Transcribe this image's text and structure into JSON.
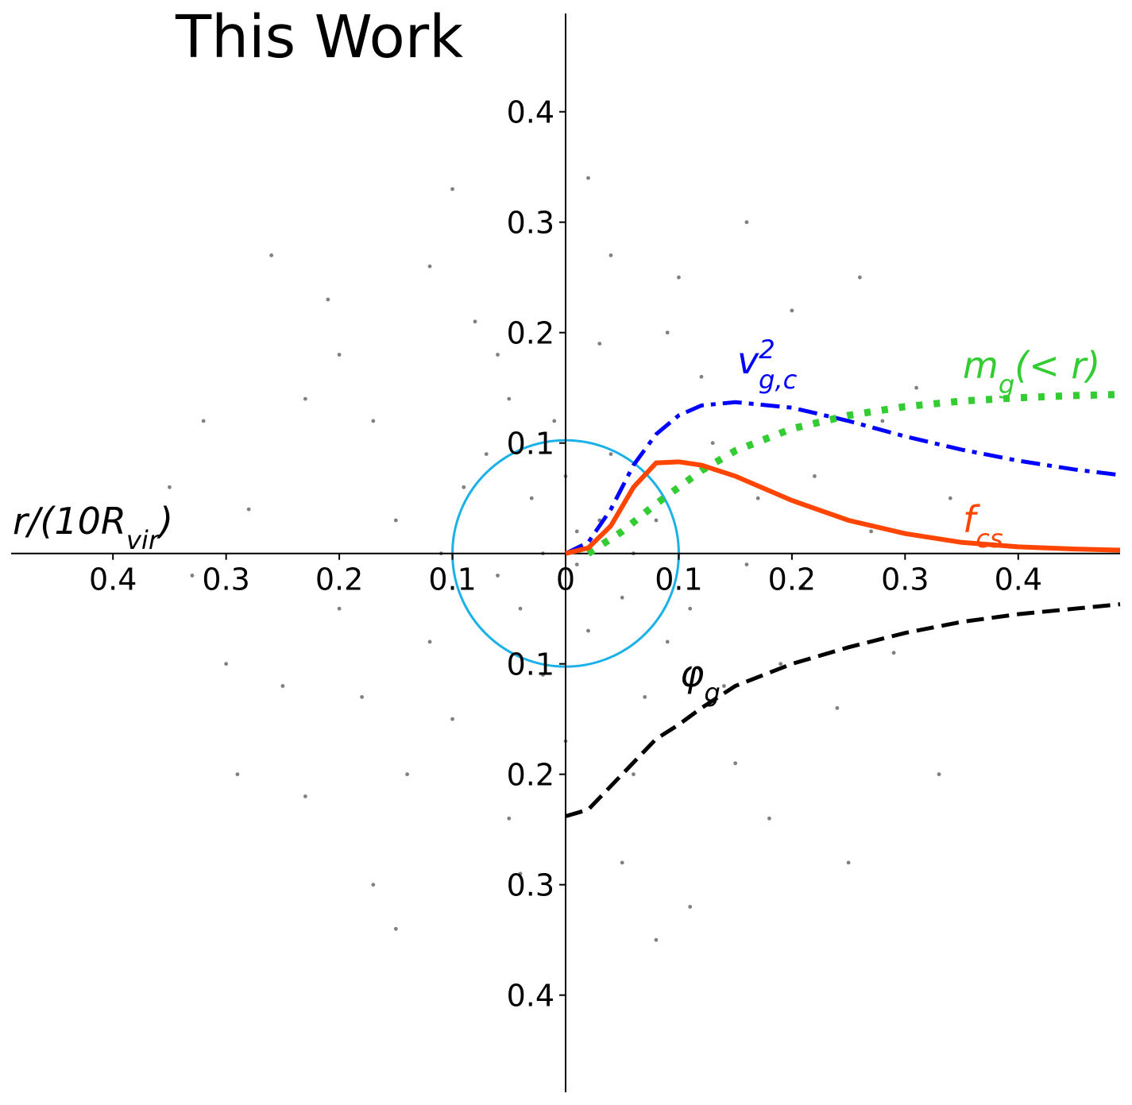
{
  "chart_data": {
    "type": "line",
    "title": "This Work",
    "xlabel": [
      {
        "text": "r/(10R"
      },
      {
        "text": "vir",
        "shift": "sub"
      },
      {
        "text": ")"
      }
    ],
    "xlim": [
      -0.49,
      0.49
    ],
    "ylim": [
      -0.488,
      0.489
    ],
    "xticks": [
      {
        "value": -0.4,
        "label": "0.4"
      },
      {
        "value": -0.3,
        "label": "0.3"
      },
      {
        "value": -0.2,
        "label": "0.2"
      },
      {
        "value": -0.1,
        "label": "0.1"
      },
      0,
      0.1,
      0.2,
      0.3,
      0.4
    ],
    "yticks": [
      {
        "value": -0.4,
        "label": "0.4"
      },
      {
        "value": -0.3,
        "label": "0.3"
      },
      {
        "value": -0.2,
        "label": "0.2"
      },
      {
        "value": -0.1,
        "label": "0.1"
      },
      0.1,
      0.2,
      0.3,
      0.4
    ],
    "circle": {
      "radius": 0.1,
      "color": "#1ab0e8"
    },
    "scatter": {
      "color": "#808080",
      "x": [
        0.01,
        -0.03,
        0.05,
        -0.06,
        0.02,
        0.08,
        -0.09,
        0.04,
        -0.02,
        0.11,
        -0.12,
        0.13,
        -0.05,
        0.07,
        -0.15,
        0.16,
        -0.1,
        0.12,
        -0.17,
        0.03,
        0.19,
        -0.2,
        0.06,
        -0.08,
        0.22,
        -0.23,
        0.15,
        -0.14,
        0.24,
        -0.25,
        0.1,
        -0.12,
        0.27,
        -0.28,
        0.2,
        -0.21,
        0.05,
        -0.04,
        0.29,
        -0.3,
        0.16,
        -0.17,
        0.31,
        -0.32,
        0.02,
        0.08,
        -0.33,
        0.33,
        -0.26,
        0.25,
        0.01,
        -0.02,
        0.03,
        -0.04,
        0.0,
        0.06,
        -0.07,
        0.09,
        -0.01,
        0.14,
        -0.11,
        0.17,
        -0.18,
        0.0,
        0.21,
        -0.06,
        0.09,
        -0.2,
        0.18,
        -0.23,
        0.28,
        -0.35,
        0.34,
        -0.1,
        0.11,
        -0.05,
        0.04,
        -0.29,
        0.26,
        -0.15
      ],
      "y": [
        0.02,
        0.05,
        -0.04,
        -0.02,
        -0.07,
        0.03,
        0.06,
        0.09,
        -0.11,
        -0.05,
        -0.08,
        0.1,
        0.14,
        -0.13,
        0.03,
        -0.01,
        -0.15,
        0.16,
        0.12,
        0.19,
        -0.1,
        -0.05,
        -0.2,
        0.21,
        0.07,
        0.14,
        -0.19,
        -0.2,
        -0.14,
        -0.12,
        0.25,
        0.26,
        0.02,
        0.04,
        0.22,
        0.23,
        -0.28,
        -0.29,
        -0.09,
        -0.1,
        0.3,
        -0.3,
        0.15,
        0.12,
        0.34,
        -0.35,
        -0.02,
        -0.2,
        0.27,
        -0.28,
        -0.01,
        0.0,
        0.03,
        -0.05,
        0.07,
        0.0,
        0.09,
        -0.08,
        0.12,
        -0.12,
        0.0,
        0.05,
        -0.13,
        -0.17,
        -0.03,
        0.18,
        0.2,
        0.18,
        -0.24,
        -0.22,
        0.12,
        0.06,
        0.05,
        0.33,
        -0.32,
        -0.24,
        0.27,
        -0.2,
        0.25,
        -0.34
      ]
    },
    "series": [
      {
        "label": [
          {
            "text": "v"
          },
          {
            "text": "2",
            "shift": "sup"
          },
          {
            "text": "g,c",
            "shift": "sub"
          }
        ],
        "color": "#0000ff",
        "linestyle": "dashdot",
        "x": [
          0,
          0.02,
          0.04,
          0.06,
          0.08,
          0.1,
          0.12,
          0.15,
          0.2,
          0.25,
          0.3,
          0.35,
          0.4,
          0.45,
          0.49
        ],
        "values": [
          0,
          0.01,
          0.04,
          0.08,
          0.108,
          0.125,
          0.134,
          0.137,
          0.132,
          0.12,
          0.106,
          0.094,
          0.084,
          0.076,
          0.071
        ]
      },
      {
        "label": [
          {
            "text": "m"
          },
          {
            "text": "g",
            "shift": "sub"
          },
          {
            "text": "(< r)"
          }
        ],
        "color": "#33cc33",
        "linestyle": "dotted",
        "x": [
          0.02,
          0.05,
          0.08,
          0.1,
          0.12,
          0.15,
          0.2,
          0.25,
          0.3,
          0.35,
          0.4,
          0.45,
          0.49
        ],
        "values": [
          0,
          0.02,
          0.045,
          0.06,
          0.075,
          0.093,
          0.113,
          0.125,
          0.133,
          0.138,
          0.141,
          0.143,
          0.144
        ]
      },
      {
        "label": [
          {
            "text": "f"
          },
          {
            "text": "cs",
            "shift": "sub"
          }
        ],
        "color": "#ff4500",
        "linestyle": "solid",
        "x": [
          0,
          0.02,
          0.04,
          0.06,
          0.08,
          0.1,
          0.12,
          0.15,
          0.2,
          0.25,
          0.3,
          0.35,
          0.4,
          0.45,
          0.49
        ],
        "values": [
          0,
          0.005,
          0.025,
          0.06,
          0.082,
          0.083,
          0.08,
          0.07,
          0.048,
          0.03,
          0.018,
          0.01,
          0.006,
          0.004,
          0.003
        ]
      },
      {
        "label": [
          {
            "text": "φ"
          },
          {
            "text": "g",
            "shift": "sub"
          }
        ],
        "color": "#000000",
        "linestyle": "dashed",
        "x": [
          0,
          0.02,
          0.05,
          0.08,
          0.1,
          0.12,
          0.15,
          0.2,
          0.25,
          0.3,
          0.35,
          0.4,
          0.45,
          0.49
        ],
        "values": [
          -0.238,
          -0.232,
          -0.2,
          -0.168,
          -0.155,
          -0.14,
          -0.12,
          -0.1,
          -0.085,
          -0.072,
          -0.062,
          -0.055,
          -0.05,
          -0.046
        ]
      }
    ]
  }
}
